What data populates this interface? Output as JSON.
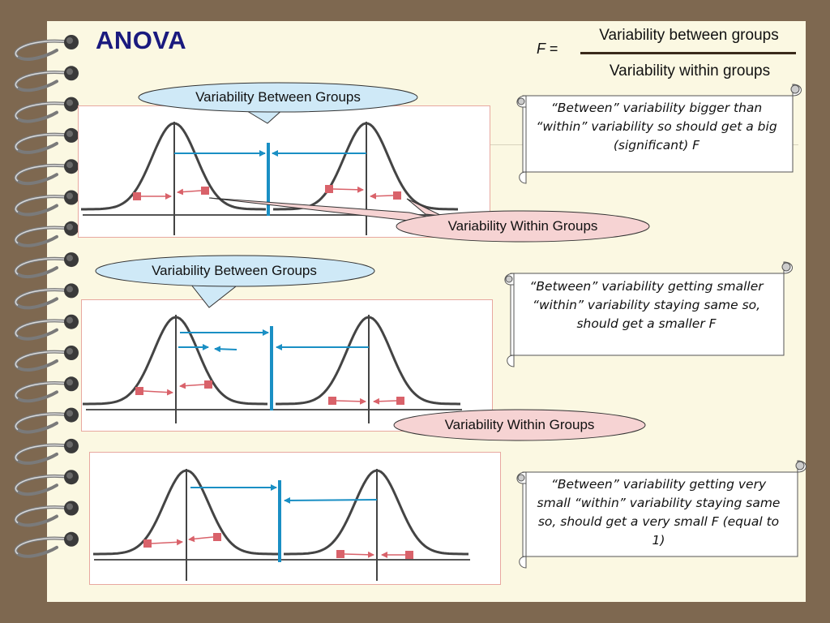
{
  "title": "ANOVA",
  "formula": {
    "lhs": "F =",
    "numerator": "Variability between groups",
    "denominator": "Variability within groups"
  },
  "callouts": {
    "between_1": "Variability Between Groups",
    "within_1": "Variability Within Groups",
    "between_2": "Variability Between Groups",
    "within_2": "Variability Within Groups"
  },
  "notes": [
    "“Between” variability bigger than “within” variability so should get a big (significant) F",
    "“Between” variability getting smaller “within” variability staying same so, should get a smaller F",
    "“Between” variability getting very small “within” variability staying same so, should get a very small  F  (equal to 1)"
  ],
  "colors": {
    "title": "#1a1a7e",
    "between_arrow": "#1a8fc4",
    "within_marker": "#d9626a",
    "callout_between_fill": "#cfe9f7",
    "callout_within_fill": "#f6d3d3",
    "paper": "#fbf8e2",
    "background": "#7e6850"
  }
}
